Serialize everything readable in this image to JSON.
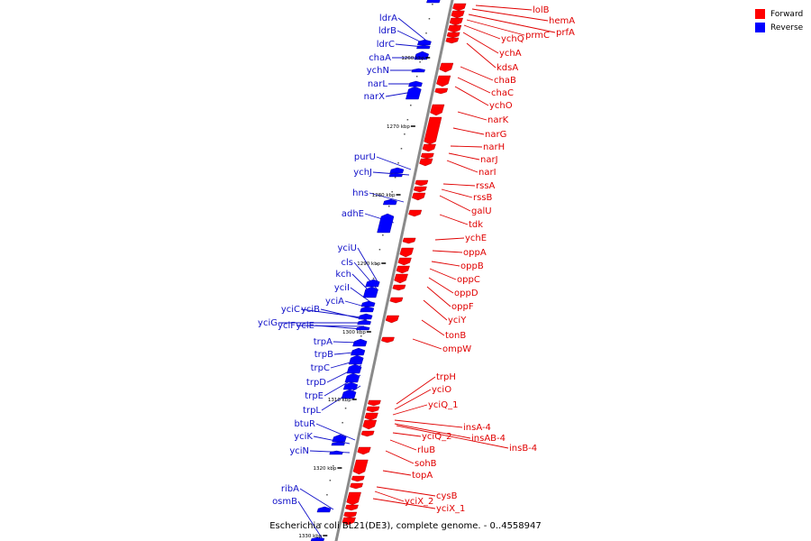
{
  "legend": {
    "forward_label": "Forward",
    "reverse_label": "Reverse",
    "forward_color": "#ff0000",
    "reverse_color": "#0000ff"
  },
  "caption": "Escherichia coli BL21(DE3), complete genome. - 0..4558947",
  "ticks": [
    "1260 kbp",
    "1270 kbp",
    "1280 kbp",
    "1290 kbp",
    "1300 kbp",
    "1310 kbp",
    "1320 kbp",
    "1330 kbp"
  ],
  "forward_genes": [
    "lolB",
    "hemA",
    "prfA",
    "prmC",
    "ychQ",
    "ychA",
    "kdsA",
    "chaB",
    "chaC",
    "ychO",
    "narK",
    "narG",
    "narH",
    "narJ",
    "narI",
    "rssA",
    "rssB",
    "galU",
    "tdk",
    "ychE",
    "oppA",
    "oppB",
    "oppC",
    "oppD",
    "oppF",
    "yciY",
    "tonB",
    "ompW",
    "trpH",
    "yciO",
    "yciQ_1",
    "insA-4",
    "insAB-4",
    "insB-4",
    "yciQ_2",
    "rluB",
    "sohB",
    "topA",
    "cysB",
    "yciX_2",
    "yciX_1"
  ],
  "reverse_genes": [
    "ldrA",
    "ldrB",
    "ldrC",
    "chaA",
    "ychN",
    "narL",
    "narX",
    "purU",
    "ychJ",
    "hns",
    "adhE",
    "yciU",
    "cls",
    "kch",
    "yciI",
    "yciA",
    "yciC",
    "yciB",
    "yciG",
    "yciF",
    "yciE",
    "trpA",
    "trpB",
    "trpC",
    "trpD",
    "trpE",
    "trpL",
    "btuR",
    "yciK",
    "yciN",
    "ribA",
    "osmB"
  ]
}
